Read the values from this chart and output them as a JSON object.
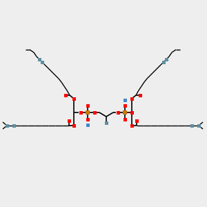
{
  "bg_color": "#eeeeee",
  "bond_color": "#000000",
  "oxygen_color": "#ff0000",
  "phosphorus_color": "#c87800",
  "sodium_color": "#4488cc",
  "double_bond_color": "#5f8fa0",
  "teal_color": "#5f8fa0",
  "fig_width": 3.0,
  "fig_height": 3.0,
  "dpi": 100
}
